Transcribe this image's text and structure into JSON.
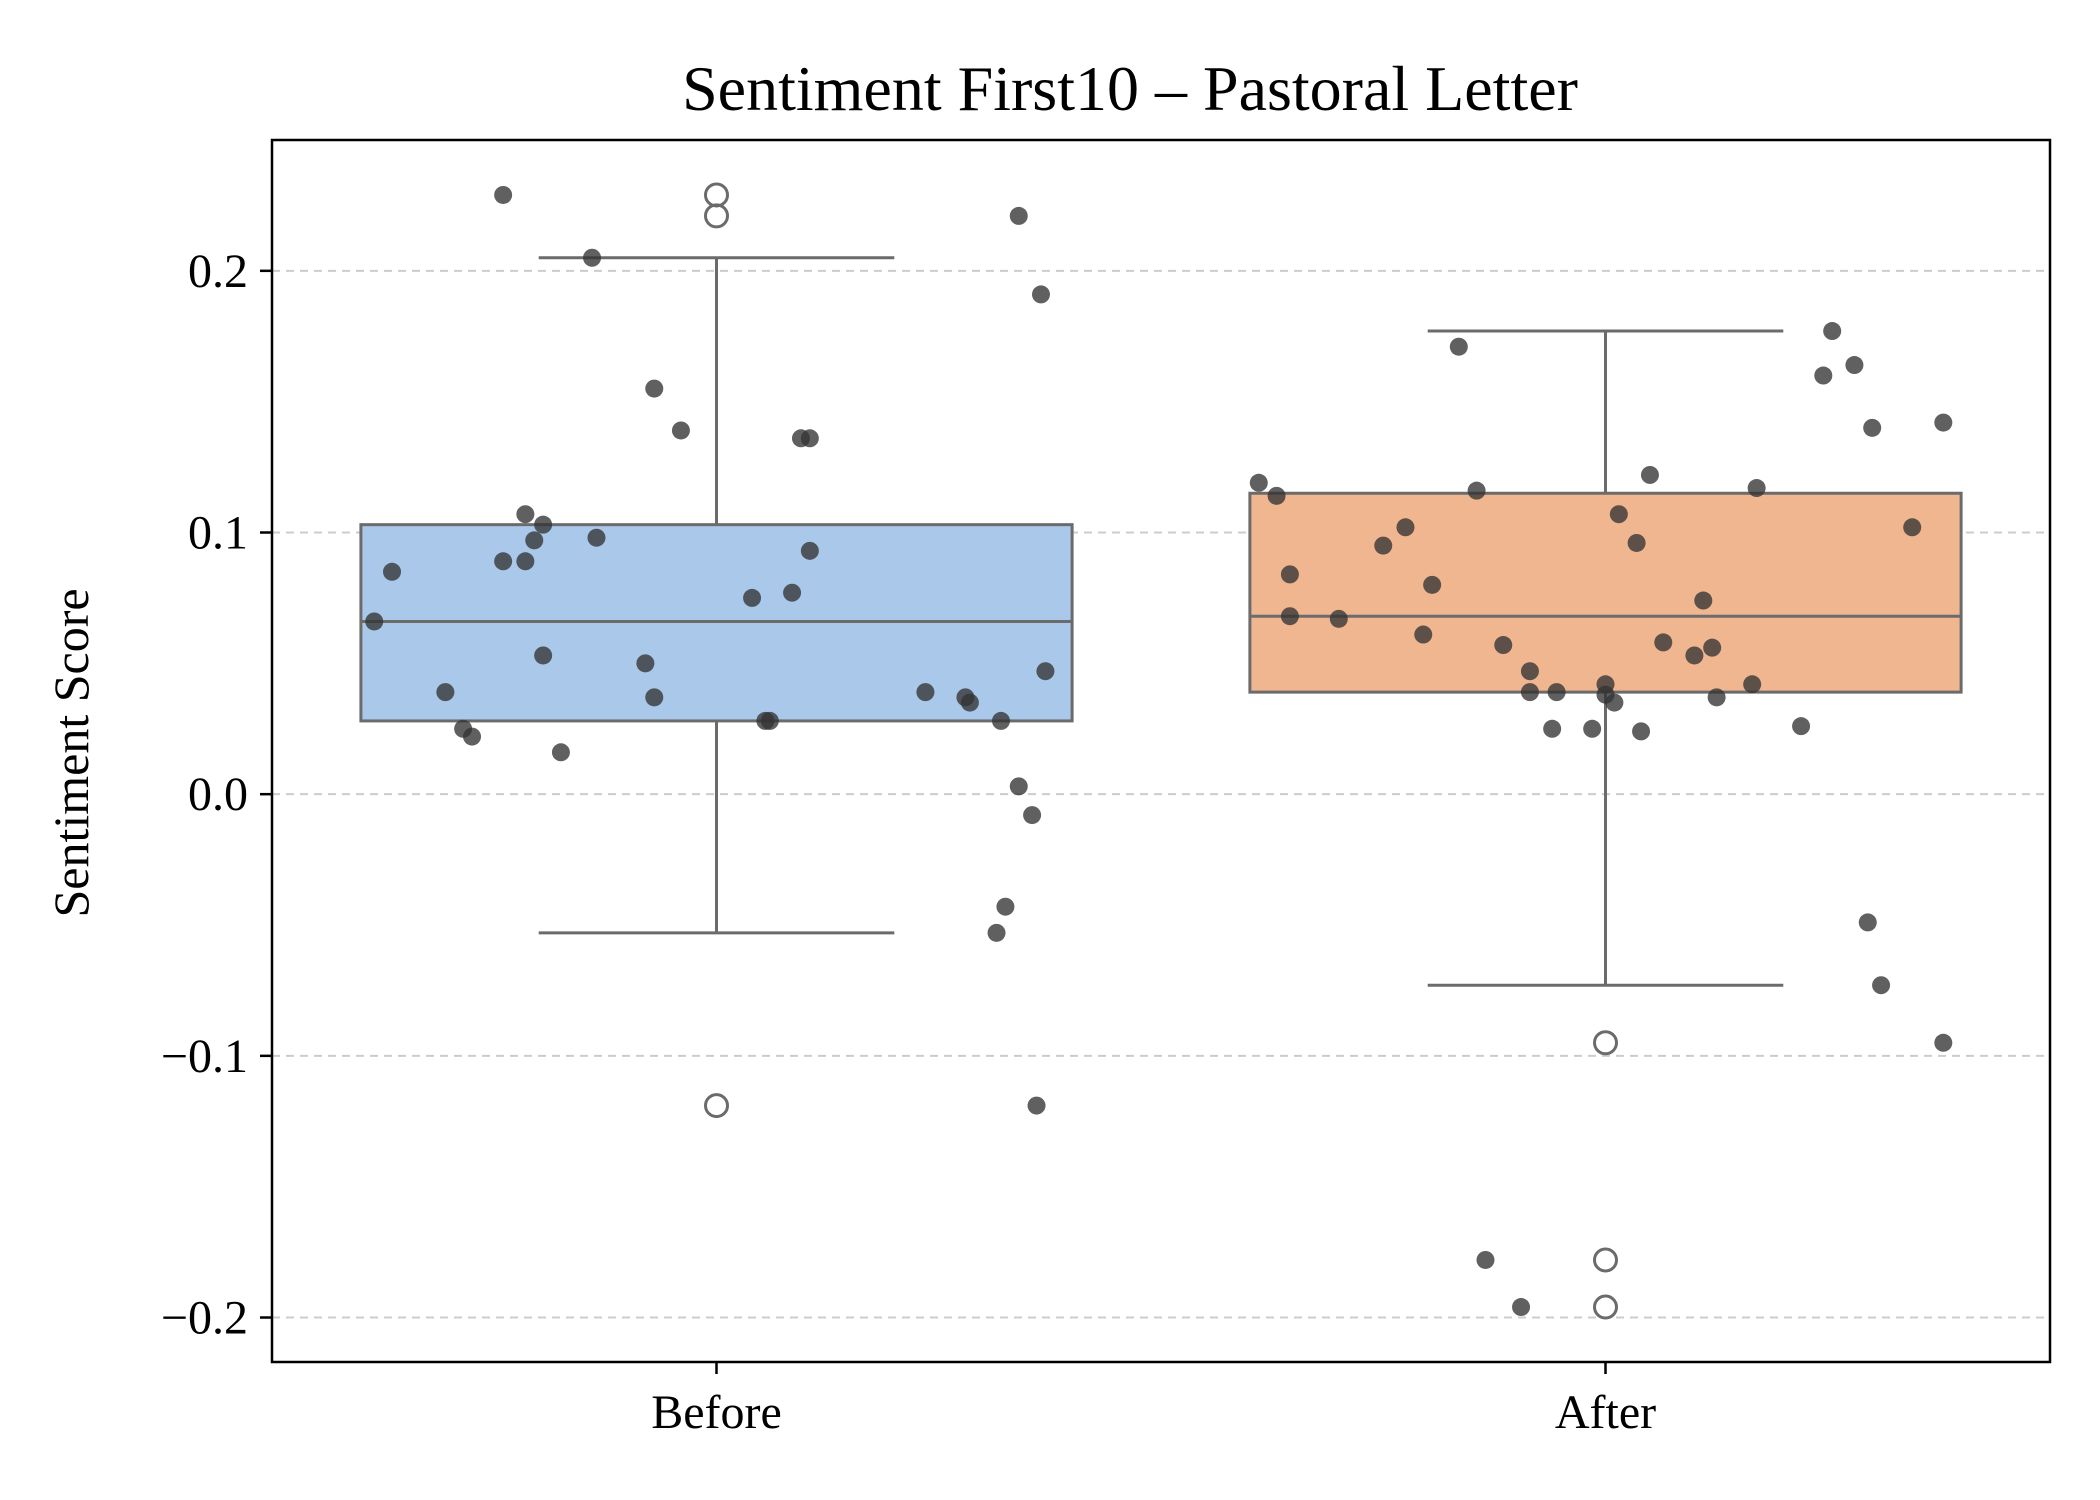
{
  "chart_data": {
    "type": "box",
    "title": "Sentiment First10 – Pastoral Letter",
    "xlabel": "",
    "ylabel": "Sentiment Score",
    "ylim": [
      -0.217,
      0.25
    ],
    "yticks": [
      -0.2,
      -0.1,
      0.0,
      0.1,
      0.2
    ],
    "ytick_labels": [
      "−0.2",
      "−0.1",
      "0.0",
      "0.1",
      "0.2"
    ],
    "grid": "horizontal dashed",
    "categories": [
      "Before",
      "After"
    ],
    "colors": {
      "Before": "#a9c8ea",
      "After": "#f0b690",
      "points": "#333333",
      "box_edge": "#6b6b6b"
    },
    "boxes": [
      {
        "name": "Before",
        "q1": 0.028,
        "median": 0.066,
        "q3": 0.103,
        "whisker_low": -0.053,
        "whisker_high": 0.205,
        "outliers": [
          0.229,
          0.221,
          -0.119
        ]
      },
      {
        "name": "After",
        "q1": 0.039,
        "median": 0.068,
        "q3": 0.115,
        "whisker_low": -0.073,
        "whisker_high": 0.177,
        "outliers": [
          -0.095,
          -0.178,
          -0.196
        ]
      }
    ],
    "points": [
      {
        "name": "Before",
        "x_offset": [
          -0.385,
          -0.24,
          -0.14,
          -0.215,
          -0.365,
          -0.205,
          -0.215,
          -0.24,
          -0.195,
          -0.135,
          -0.195,
          -0.305,
          -0.285,
          -0.275,
          -0.175,
          -0.07,
          -0.04,
          -0.08,
          -0.07,
          0.04,
          0.085,
          0.105,
          0.06,
          0.055,
          0.105,
          0.095,
          0.365,
          0.34,
          0.37,
          0.235,
          0.28,
          0.285,
          0.34,
          0.355,
          0.325,
          0.315,
          0.36,
          0.32
        ],
        "y": [
          0.066,
          0.229,
          0.205,
          0.107,
          0.085,
          0.097,
          0.089,
          0.089,
          0.103,
          0.098,
          0.053,
          0.039,
          0.025,
          0.022,
          0.016,
          0.155,
          0.139,
          0.05,
          0.037,
          0.075,
          0.077,
          0.093,
          0.028,
          0.028,
          0.136,
          0.136,
          0.191,
          0.221,
          0.047,
          0.039,
          0.037,
          0.035,
          0.003,
          -0.008,
          -0.043,
          -0.053,
          -0.119,
          0.028
        ]
      },
      {
        "name": "After",
        "x_offset": [
          -0.37,
          -0.39,
          -0.355,
          -0.355,
          -0.3,
          -0.25,
          -0.225,
          -0.195,
          -0.205,
          -0.145,
          -0.165,
          -0.085,
          -0.115,
          -0.06,
          0.0,
          0.0,
          0.01,
          0.04,
          0.05,
          0.015,
          0.035,
          0.065,
          0.1,
          0.12,
          0.11,
          0.255,
          0.245,
          0.28,
          0.3,
          0.345,
          0.38,
          0.17,
          0.22,
          0.295,
          0.31,
          0.38,
          -0.135,
          -0.095,
          -0.015,
          0.165,
          0.125,
          -0.055,
          -0.085
        ],
        "y": [
          0.114,
          0.119,
          0.084,
          0.068,
          0.067,
          0.095,
          0.102,
          0.08,
          0.061,
          0.116,
          0.171,
          0.047,
          0.057,
          0.025,
          0.042,
          0.038,
          0.035,
          0.024,
          0.122,
          0.107,
          0.096,
          0.058,
          0.053,
          0.056,
          0.074,
          0.177,
          0.16,
          0.164,
          0.14,
          0.102,
          0.142,
          0.117,
          0.026,
          -0.049,
          -0.073,
          -0.095,
          -0.178,
          -0.196,
          0.025,
          0.042,
          0.037,
          0.039,
          0.039
        ]
      }
    ]
  }
}
